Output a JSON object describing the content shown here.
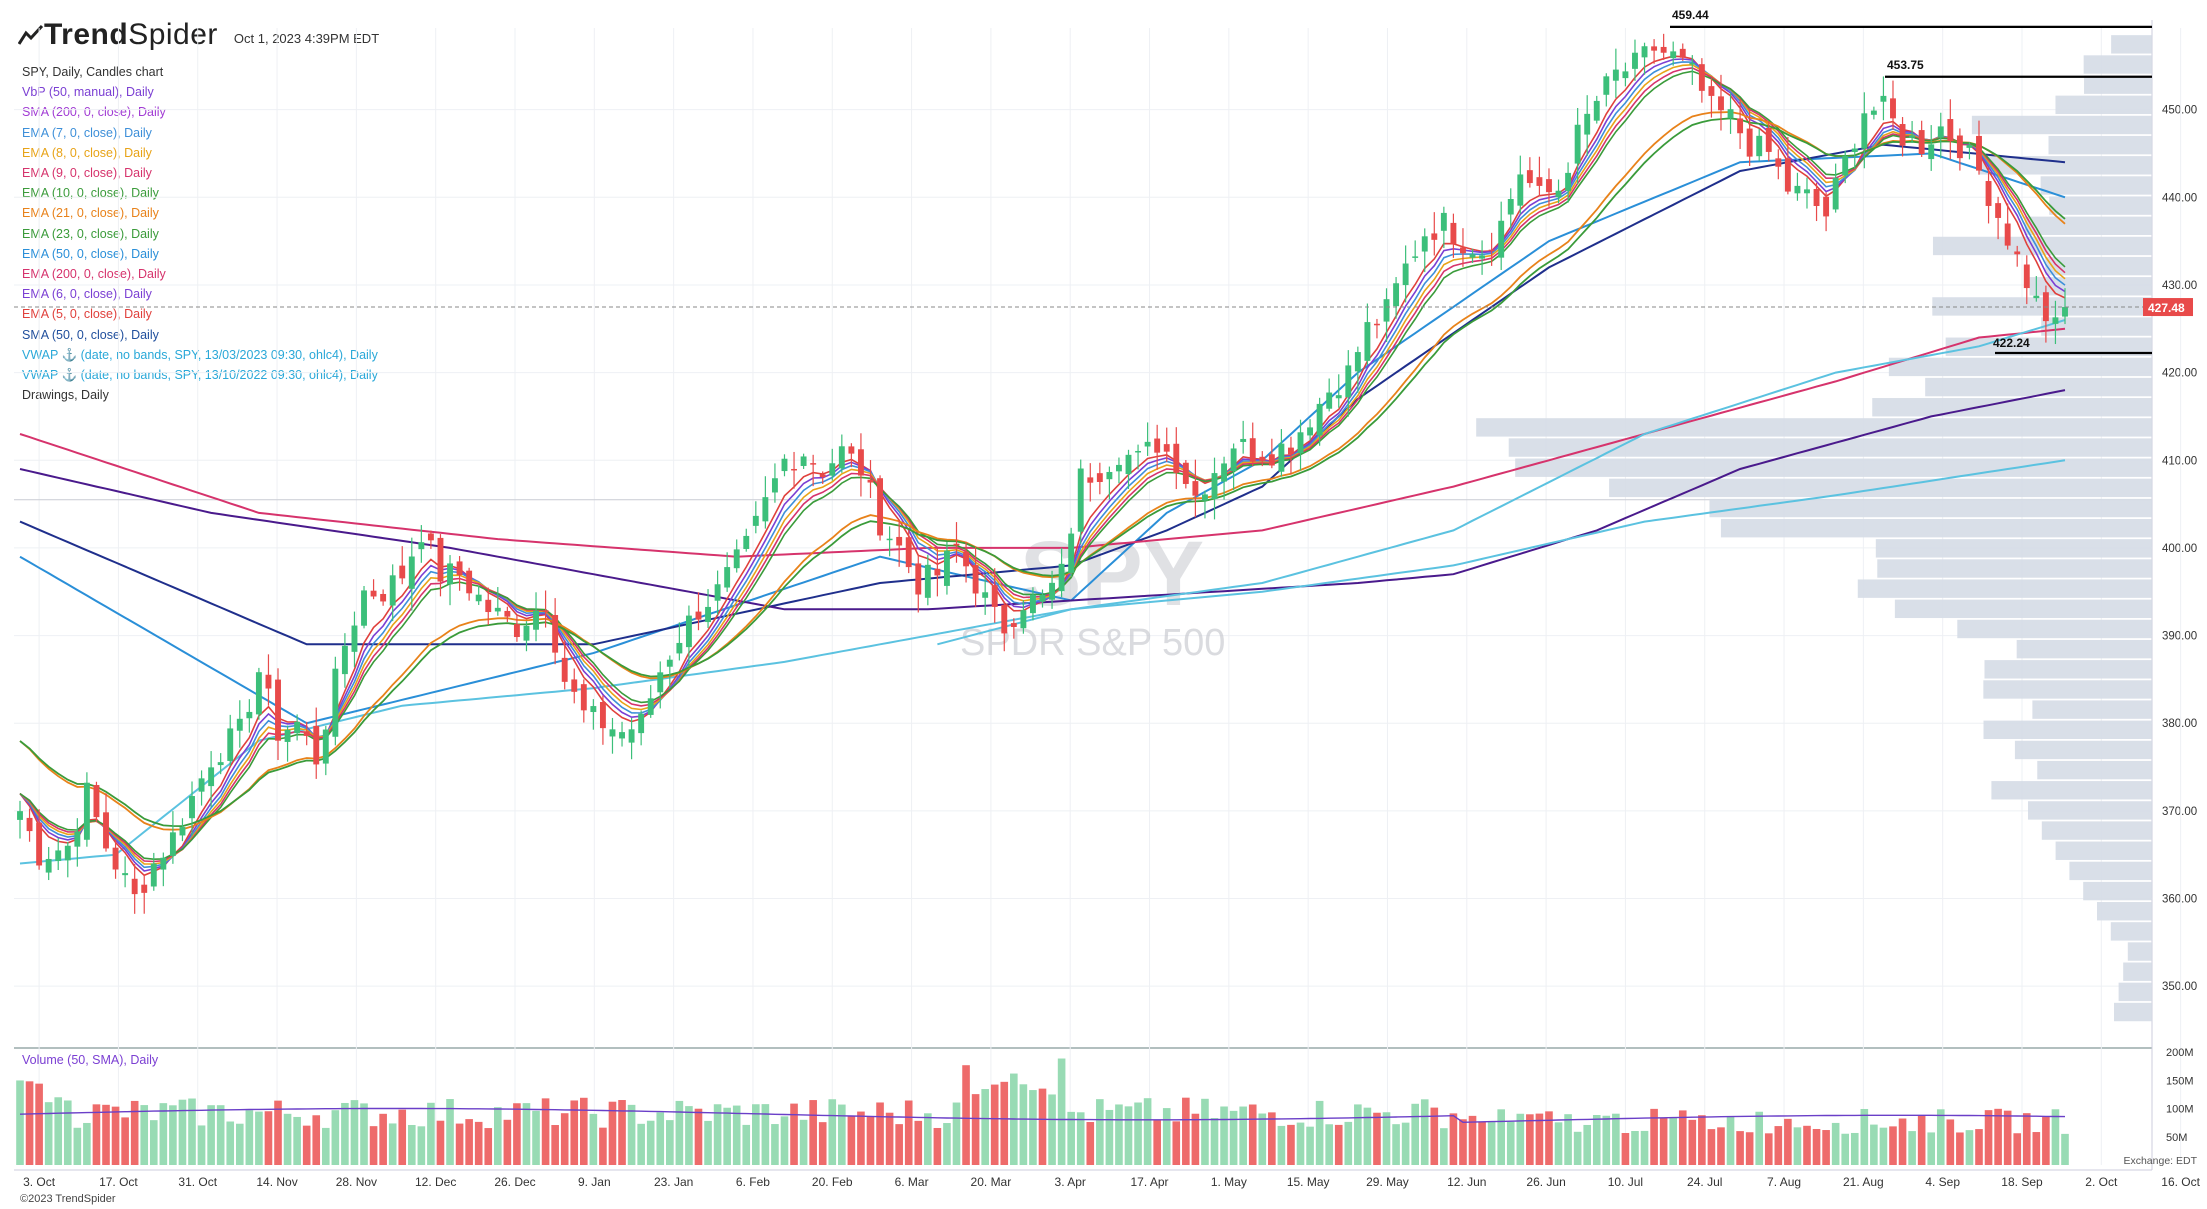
{
  "header": {
    "brand_bold": "Trend",
    "brand_regular": "Spider",
    "timestamp": "Oct 1, 2023 4:39PM EDT"
  },
  "indicators": [
    {
      "label": "SPY, Daily, Candles chart",
      "color": "#333333"
    },
    {
      "label": "VbP (50, manual), Daily",
      "color": "#7b3fd3"
    },
    {
      "label": "SMA (200, 0, close), Daily",
      "color": "#a13bd4"
    },
    {
      "label": "EMA (7, 0, close), Daily",
      "color": "#3d8fd9"
    },
    {
      "label": "EMA (8, 0, close), Daily",
      "color": "#e8a317"
    },
    {
      "label": "EMA (9, 0, close), Daily",
      "color": "#d6336c"
    },
    {
      "label": "EMA (10, 0, close), Daily",
      "color": "#3a9b3a"
    },
    {
      "label": "EMA (21, 0, close), Daily",
      "color": "#e8821a"
    },
    {
      "label": "EMA (23, 0, close), Daily",
      "color": "#3a9b3a"
    },
    {
      "label": "EMA (50, 0, close), Daily",
      "color": "#2a8fd8"
    },
    {
      "label": "EMA (200, 0, close), Daily",
      "color": "#d6336c"
    },
    {
      "label": "EMA (6, 0, close), Daily",
      "color": "#7b3fd3"
    },
    {
      "label": "EMA (5, 0, close), Daily",
      "color": "#e0403c"
    },
    {
      "label": "SMA (50, 0, close), Daily",
      "color": "#1f4e9c"
    },
    {
      "label": "VWAP ⚓ (date, no bands, SPY, 13/03/2023 09:30, ohlc4), Daily",
      "color": "#2aa8d8"
    },
    {
      "label": "VWAP ⚓ (date, no bands, SPY, 13/10/2022 09:30, ohlc4), Daily",
      "color": "#2aa8d8"
    },
    {
      "label": "Drawings, Daily",
      "color": "#333333"
    }
  ],
  "watermark": {
    "symbol": "SPY",
    "name": "SPDR S&P 500"
  },
  "volume_label": "Volume (50, SMA), Daily",
  "copyright": "©2023 TrendSpider",
  "exchange": "Exchange: EDT",
  "colors": {
    "up": "#3cbf7a",
    "down": "#e84a4a",
    "vol_up": "#98dbb4",
    "vol_down": "#ee6b6b",
    "vbp": "#d5dbe6",
    "level": "#000000",
    "price_tag": "#e84a4a"
  },
  "chart_data": {
    "type": "candlestick",
    "title": "SPY, Daily, Candles chart",
    "ylim": [
      345,
      460
    ],
    "y_ticks": [
      350,
      360,
      370,
      380,
      390,
      400,
      410,
      420,
      430,
      440,
      450
    ],
    "y_tick_labels": [
      "350.00",
      "360.00",
      "370.00",
      "380.00",
      "390.00",
      "400.00",
      "410.00",
      "420.00",
      "430.00",
      "440.00",
      "450.00"
    ],
    "x_tick_labels": [
      "3. Oct",
      "17. Oct",
      "31. Oct",
      "14. Nov",
      "28. Nov",
      "12. Dec",
      "26. Dec",
      "9. Jan",
      "23. Jan",
      "6. Feb",
      "20. Feb",
      "6. Mar",
      "20. Mar",
      "3. Apr",
      "17. Apr",
      "1. May",
      "15. May",
      "29. May",
      "12. Jun",
      "26. Jun",
      "10. Jul",
      "24. Jul",
      "7. Aug",
      "21. Aug",
      "4. Sep",
      "18. Sep",
      "2. Oct",
      "16. Oct"
    ],
    "grid": true,
    "last_price": {
      "value": 427.48,
      "label": "427.48"
    },
    "price_levels": [
      {
        "value": 459.44,
        "label": "459.44"
      },
      {
        "value": 453.75,
        "label": "453.75"
      },
      {
        "value": 422.24,
        "label": "422.24"
      }
    ],
    "close_path": [
      [
        0,
        370
      ],
      [
        2,
        365
      ],
      [
        5,
        366
      ],
      [
        7,
        372
      ],
      [
        9,
        366
      ],
      [
        12,
        360
      ],
      [
        14,
        364
      ],
      [
        16,
        367
      ],
      [
        20,
        376
      ],
      [
        23,
        379
      ],
      [
        25,
        386
      ],
      [
        27,
        379
      ],
      [
        29,
        380
      ],
      [
        31,
        376
      ],
      [
        34,
        389
      ],
      [
        36,
        395
      ],
      [
        38,
        395
      ],
      [
        40,
        397
      ],
      [
        42,
        402
      ],
      [
        44,
        397
      ],
      [
        46,
        397
      ],
      [
        49,
        393
      ],
      [
        52,
        391
      ],
      [
        55,
        394
      ],
      [
        57,
        385
      ],
      [
        59,
        381
      ],
      [
        61,
        380
      ],
      [
        63,
        379
      ],
      [
        65,
        380
      ],
      [
        67,
        386
      ],
      [
        69,
        390
      ],
      [
        71,
        393
      ],
      [
        73,
        395
      ],
      [
        76,
        400
      ],
      [
        78,
        405
      ],
      [
        80,
        410
      ],
      [
        82,
        411
      ],
      [
        84,
        409
      ],
      [
        86,
        411
      ],
      [
        88,
        409
      ],
      [
        90,
        403
      ],
      [
        92,
        400
      ],
      [
        94,
        396
      ],
      [
        96,
        397
      ],
      [
        98,
        400
      ],
      [
        100,
        396
      ],
      [
        102,
        392
      ],
      [
        103,
        391
      ],
      [
        105,
        394
      ],
      [
        107,
        394
      ],
      [
        109,
        397
      ],
      [
        111,
        408
      ],
      [
        113,
        409
      ],
      [
        115,
        411
      ],
      [
        117,
        410
      ],
      [
        119,
        412
      ],
      [
        121,
        410
      ],
      [
        123,
        406
      ],
      [
        125,
        409
      ],
      [
        127,
        412
      ],
      [
        129,
        411
      ],
      [
        131,
        411
      ],
      [
        133,
        412
      ],
      [
        135,
        415
      ],
      [
        137,
        418
      ],
      [
        139,
        420
      ],
      [
        141,
        425
      ],
      [
        143,
        427
      ],
      [
        145,
        432
      ],
      [
        147,
        436
      ],
      [
        149,
        437
      ],
      [
        151,
        435
      ],
      [
        153,
        434
      ],
      [
        155,
        437
      ],
      [
        157,
        443
      ],
      [
        159,
        440
      ],
      [
        161,
        441
      ],
      [
        163,
        447
      ],
      [
        165,
        451
      ],
      [
        167,
        454
      ],
      [
        169,
        455
      ],
      [
        171,
        457
      ],
      [
        173,
        456
      ],
      [
        175,
        454
      ],
      [
        177,
        450
      ],
      [
        179,
        449
      ],
      [
        181,
        446
      ],
      [
        183,
        445
      ],
      [
        185,
        441
      ],
      [
        187,
        440
      ],
      [
        189,
        438
      ],
      [
        191,
        444
      ],
      [
        193,
        450
      ],
      [
        195,
        450
      ],
      [
        197,
        447
      ],
      [
        199,
        446
      ],
      [
        201,
        448
      ],
      [
        203,
        446
      ],
      [
        205,
        443
      ],
      [
        207,
        438
      ],
      [
        209,
        433
      ],
      [
        211,
        428
      ],
      [
        213,
        425
      ],
      [
        214,
        427.48
      ]
    ],
    "ma_series": [
      {
        "name": "EMA (50, 0, close), Daily",
        "points": [
          [
            0,
            399
          ],
          [
            30,
            380
          ],
          [
            60,
            388
          ],
          [
            90,
            399
          ],
          [
            110,
            394
          ],
          [
            120,
            404
          ],
          [
            130,
            410
          ],
          [
            140,
            420
          ],
          [
            160,
            435
          ],
          [
            180,
            444
          ],
          [
            200,
            445
          ],
          [
            214,
            440
          ]
        ]
      },
      {
        "name": "SMA (50, 0, close), Daily",
        "points": [
          [
            0,
            403
          ],
          [
            30,
            389
          ],
          [
            60,
            389
          ],
          [
            90,
            396
          ],
          [
            110,
            398
          ],
          [
            120,
            402
          ],
          [
            130,
            407
          ],
          [
            140,
            417
          ],
          [
            160,
            432
          ],
          [
            180,
            443
          ],
          [
            195,
            446
          ],
          [
            214,
            444
          ]
        ]
      },
      {
        "name": "EMA (200, 0, close), Daily",
        "points": [
          [
            0,
            413
          ],
          [
            25,
            404
          ],
          [
            50,
            401
          ],
          [
            75,
            399
          ],
          [
            95,
            400
          ],
          [
            110,
            400
          ],
          [
            130,
            402
          ],
          [
            150,
            407
          ],
          [
            170,
            413
          ],
          [
            190,
            419
          ],
          [
            205,
            424
          ],
          [
            214,
            425
          ]
        ]
      },
      {
        "name": "SMA (200, 0, close), Daily",
        "points": [
          [
            0,
            409
          ],
          [
            20,
            404
          ],
          [
            45,
            400
          ],
          [
            60,
            397
          ],
          [
            80,
            393
          ],
          [
            95,
            393
          ],
          [
            110,
            394
          ],
          [
            125,
            395
          ],
          [
            140,
            396
          ],
          [
            150,
            397
          ],
          [
            165,
            402
          ],
          [
            180,
            409
          ],
          [
            200,
            415
          ],
          [
            214,
            418
          ]
        ]
      },
      {
        "name": "VWAP ⚓ (date, no bands, SPY, 13/03/2023 09:30, ohlc4), Daily",
        "points": [
          [
            96,
            389
          ],
          [
            110,
            393
          ],
          [
            130,
            396
          ],
          [
            150,
            402
          ],
          [
            170,
            413
          ],
          [
            190,
            420
          ],
          [
            205,
            423
          ],
          [
            214,
            426
          ]
        ]
      },
      {
        "name": "VWAP ⚓ (date, no bands, SPY, 13/10/2022 09:30, ohlc4), Daily",
        "points": [
          [
            0,
            364
          ],
          [
            10,
            365
          ],
          [
            25,
            378
          ],
          [
            40,
            382
          ],
          [
            60,
            384
          ],
          [
            80,
            387
          ],
          [
            95,
            390
          ],
          [
            110,
            393
          ],
          [
            130,
            395
          ],
          [
            150,
            398
          ],
          [
            170,
            403
          ],
          [
            190,
            406
          ],
          [
            214,
            410
          ]
        ]
      }
    ],
    "volume": {
      "ylim": [
        0,
        200
      ],
      "y_tick_labels": [
        "200M",
        "150M",
        "100M",
        "50M"
      ],
      "y_ticks": [
        200,
        150,
        100,
        50
      ],
      "sma_level": 90
    }
  }
}
